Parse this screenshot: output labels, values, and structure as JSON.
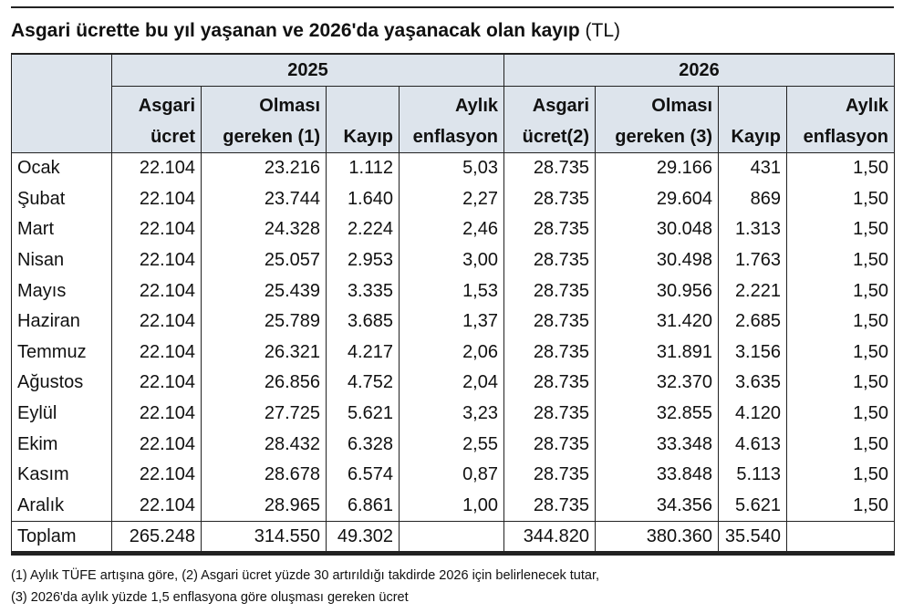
{
  "header": {
    "title": "Asgari ücrette bu yıl yaşanan ve 2026'da yaşanacak olan kayıp",
    "unit": "(TL)"
  },
  "table": {
    "groups": [
      "2025",
      "2026"
    ],
    "columns": [
      [
        "Asgari",
        "ücret"
      ],
      [
        "Olması",
        "gereken (1)"
      ],
      [
        "Kayıp"
      ],
      [
        "Aylık",
        "enflasyon"
      ],
      [
        "Asgari",
        "ücret(2)"
      ],
      [
        "Olması",
        "gereken (3)"
      ],
      [
        "Kayıp"
      ],
      [
        "Aylık",
        "enflasyon"
      ]
    ],
    "rows": [
      [
        "Ocak",
        "22.104",
        "23.216",
        "1.112",
        "5,03",
        "28.735",
        "29.166",
        "431",
        "1,50"
      ],
      [
        "Şubat",
        "22.104",
        "23.744",
        "1.640",
        "2,27",
        "28.735",
        "29.604",
        "869",
        "1,50"
      ],
      [
        "Mart",
        "22.104",
        "24.328",
        "2.224",
        "2,46",
        "28.735",
        "30.048",
        "1.313",
        "1,50"
      ],
      [
        "Nisan",
        "22.104",
        "25.057",
        "2.953",
        "3,00",
        "28.735",
        "30.498",
        "1.763",
        "1,50"
      ],
      [
        "Mayıs",
        "22.104",
        "25.439",
        "3.335",
        "1,53",
        "28.735",
        "30.956",
        "2.221",
        "1,50"
      ],
      [
        "Haziran",
        "22.104",
        "25.789",
        "3.685",
        "1,37",
        "28.735",
        "31.420",
        "2.685",
        "1,50"
      ],
      [
        "Temmuz",
        "22.104",
        "26.321",
        "4.217",
        "2,06",
        "28.735",
        "31.891",
        "3.156",
        "1,50"
      ],
      [
        "Ağustos",
        "22.104",
        "26.856",
        "4.752",
        "2,04",
        "28.735",
        "32.370",
        "3.635",
        "1,50"
      ],
      [
        "Eylül",
        "22.104",
        "27.725",
        "5.621",
        "3,23",
        "28.735",
        "32.855",
        "4.120",
        "1,50"
      ],
      [
        "Ekim",
        "22.104",
        "28.432",
        "6.328",
        "2,55",
        "28.735",
        "33.348",
        "4.613",
        "1,50"
      ],
      [
        "Kasım",
        "22.104",
        "28.678",
        "6.574",
        "0,87",
        "28.735",
        "33.848",
        "5.113",
        "1,50"
      ],
      [
        "Aralık",
        "22.104",
        "28.965",
        "6.861",
        "1,00",
        "28.735",
        "34.356",
        "5.621",
        "1,50"
      ]
    ],
    "total": [
      "Toplam",
      "265.248",
      "314.550",
      "49.302",
      null,
      "344.820",
      "380.360",
      "35.540",
      null
    ]
  },
  "footnotes": [
    "(1) Aylık TÜFE artışına göre, (2) Asgari ücret yüzde 30 artırıldığı takdirde 2026 için belirlenecek tutar,",
    "(3) 2026'da aylık yüzde 1,5 enflasyona göre oluşması gereken ücret"
  ]
}
